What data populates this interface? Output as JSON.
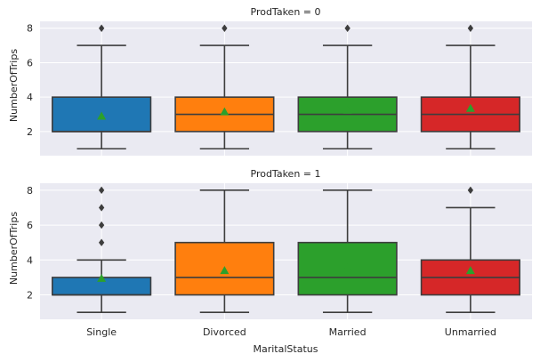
{
  "chart_data": {
    "type": "box",
    "xlabel": "MaritalStatus",
    "ylabel": "NumberOfTrips",
    "categories": [
      "Single",
      "Divorced",
      "Married",
      "Unmarried"
    ],
    "colors": [
      "#1f77b4",
      "#ff7f0e",
      "#2ca02c",
      "#d62728"
    ],
    "mean_marker_color": "#2ca02c",
    "outlier_marker": "diamond",
    "ylim": [
      0.6,
      8.4
    ],
    "yticks": [
      2,
      4,
      6,
      8
    ],
    "grid": true,
    "panels": [
      {
        "title": "ProdTaken = 0",
        "boxes": [
          {
            "category": "Single",
            "q1": 2,
            "median": 2,
            "q3": 4,
            "whisker_low": 1,
            "whisker_high": 7,
            "mean": 2.9,
            "outliers": [
              8
            ]
          },
          {
            "category": "Divorced",
            "q1": 2,
            "median": 3,
            "q3": 4,
            "whisker_low": 1,
            "whisker_high": 7,
            "mean": 3.15,
            "outliers": [
              8
            ]
          },
          {
            "category": "Married",
            "q1": 2,
            "median": 3,
            "q3": 4,
            "whisker_low": 1,
            "whisker_high": 7,
            "mean": 3.25,
            "outliers": [
              8
            ]
          },
          {
            "category": "Unmarried",
            "q1": 2,
            "median": 3,
            "q3": 4,
            "whisker_low": 1,
            "whisker_high": 7,
            "mean": 3.35,
            "outliers": [
              8
            ]
          }
        ]
      },
      {
        "title": "ProdTaken = 1",
        "boxes": [
          {
            "category": "Single",
            "q1": 2,
            "median": 2,
            "q3": 3,
            "whisker_low": 1,
            "whisker_high": 4,
            "mean": 2.95,
            "outliers": [
              5,
              6,
              7,
              8
            ]
          },
          {
            "category": "Divorced",
            "q1": 2,
            "median": 3,
            "q3": 5,
            "whisker_low": 1,
            "whisker_high": 8,
            "mean": 3.4,
            "outliers": []
          },
          {
            "category": "Married",
            "q1": 2,
            "median": 3,
            "q3": 5,
            "whisker_low": 1,
            "whisker_high": 8,
            "mean": 3.55,
            "outliers": []
          },
          {
            "category": "Unmarried",
            "q1": 2,
            "median": 3,
            "q3": 4,
            "whisker_low": 1,
            "whisker_high": 7,
            "mean": 3.4,
            "outliers": [
              8
            ]
          }
        ]
      }
    ]
  }
}
